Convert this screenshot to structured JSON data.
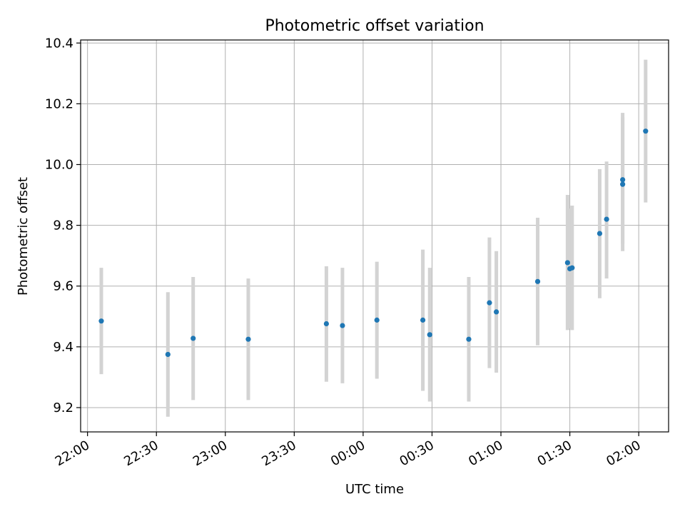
{
  "chart_data": {
    "type": "scatter",
    "title": "Photometric offset variation",
    "xlabel": "UTC time",
    "ylabel": "Photometric offset",
    "x_axis_kind": "time",
    "xlim": [
      "21:57",
      "02:13"
    ],
    "ylim": [
      9.12,
      10.41
    ],
    "x_ticks": [
      "22:00",
      "22:30",
      "23:00",
      "23:30",
      "00:00",
      "00:30",
      "01:00",
      "01:30",
      "02:00"
    ],
    "y_ticks": [
      9.2,
      9.4,
      9.6,
      9.8,
      10.0,
      10.2,
      10.4
    ],
    "y_tick_labels": [
      "9.2",
      "9.4",
      "9.6",
      "9.8",
      "10.0",
      "10.2",
      "10.4"
    ],
    "grid": true,
    "marker_color": "#1f77b4",
    "errorbar_color": "#d3d3d3",
    "points": [
      {
        "x": "22:06",
        "y": 9.485,
        "lo": 9.31,
        "hi": 9.66
      },
      {
        "x": "22:35",
        "y": 9.375,
        "lo": 9.17,
        "hi": 9.58
      },
      {
        "x": "22:46",
        "y": 9.428,
        "lo": 9.225,
        "hi": 9.63
      },
      {
        "x": "23:10",
        "y": 9.425,
        "lo": 9.225,
        "hi": 9.625
      },
      {
        "x": "23:44",
        "y": 9.476,
        "lo": 9.285,
        "hi": 9.665
      },
      {
        "x": "23:51",
        "y": 9.47,
        "lo": 9.28,
        "hi": 9.66
      },
      {
        "x": "00:06",
        "y": 9.488,
        "lo": 9.295,
        "hi": 9.68
      },
      {
        "x": "00:26",
        "y": 9.488,
        "lo": 9.255,
        "hi": 9.72
      },
      {
        "x": "00:29",
        "y": 9.44,
        "lo": 9.22,
        "hi": 9.66
      },
      {
        "x": "00:46",
        "y": 9.425,
        "lo": 9.22,
        "hi": 9.63
      },
      {
        "x": "00:55",
        "y": 9.545,
        "lo": 9.33,
        "hi": 9.76
      },
      {
        "x": "00:58",
        "y": 9.515,
        "lo": 9.315,
        "hi": 9.715
      },
      {
        "x": "01:16",
        "y": 9.615,
        "lo": 9.405,
        "hi": 9.825
      },
      {
        "x": "01:29",
        "y": 9.677,
        "lo": 9.455,
        "hi": 9.9
      },
      {
        "x": "01:30",
        "y": 9.657,
        "lo": 9.46,
        "hi": 9.855
      },
      {
        "x": "01:31",
        "y": 9.66,
        "lo": 9.455,
        "hi": 9.865
      },
      {
        "x": "01:43",
        "y": 9.773,
        "lo": 9.56,
        "hi": 9.985
      },
      {
        "x": "01:46",
        "y": 9.82,
        "lo": 9.625,
        "hi": 10.01
      },
      {
        "x": "01:53",
        "y": 9.95,
        "lo": 9.74,
        "hi": 10.17
      },
      {
        "x": "01:53",
        "y": 9.935,
        "lo": 9.715,
        "hi": 10.155
      },
      {
        "x": "02:03",
        "y": 10.11,
        "lo": 9.875,
        "hi": 10.345
      }
    ]
  }
}
